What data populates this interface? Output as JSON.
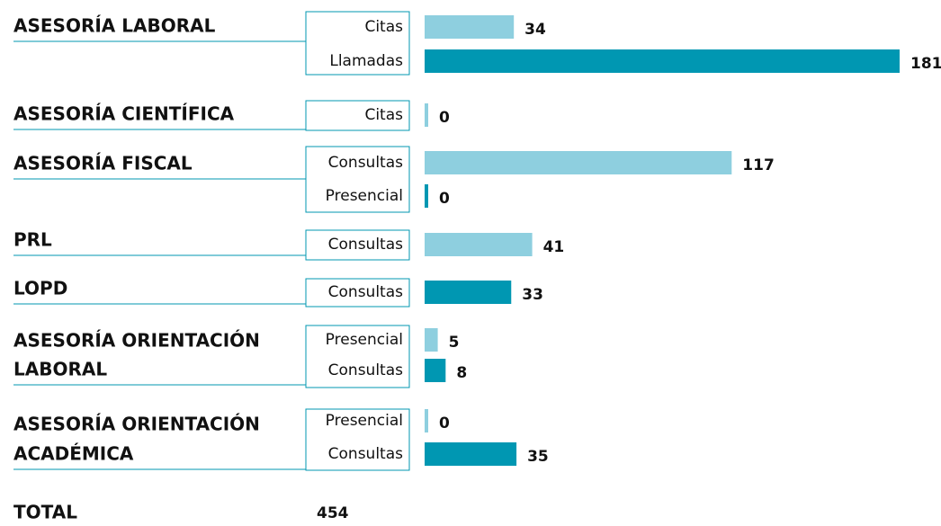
{
  "chart_data": {
    "type": "bar",
    "groups": [
      {
        "label_lines": [
          "ASESORÍA LABORAL"
        ],
        "items": [
          {
            "name": "Citas",
            "value": 34,
            "color": "#8ecfdf"
          },
          {
            "name": "Llamadas",
            "value": 181,
            "color": "#0097b2"
          }
        ]
      },
      {
        "label_lines": [
          "ASESORÍA CIENTÍFICA"
        ],
        "items": [
          {
            "name": "Citas",
            "value": 0,
            "color": "#8ecfdf"
          }
        ]
      },
      {
        "label_lines": [
          "ASESORÍA FISCAL"
        ],
        "items": [
          {
            "name": "Consultas",
            "value": 117,
            "color": "#8ecfdf"
          },
          {
            "name": "Presencial",
            "value": 0,
            "color": "#0097b2"
          }
        ]
      },
      {
        "label_lines": [
          "PRL"
        ],
        "items": [
          {
            "name": "Consultas",
            "value": 41,
            "color": "#8ecfdf"
          }
        ]
      },
      {
        "label_lines": [
          "LOPD"
        ],
        "items": [
          {
            "name": "Consultas",
            "value": 33,
            "color": "#0097b2"
          }
        ]
      },
      {
        "label_lines": [
          "ASESORÍA ORIENTACIÓN",
          "LABORAL"
        ],
        "items": [
          {
            "name": "Presencial",
            "value": 5,
            "color": "#8ecfdf"
          },
          {
            "name": "Consultas",
            "value": 8,
            "color": "#0097b2"
          }
        ]
      },
      {
        "label_lines": [
          "ASESORÍA ORIENTACIÓN",
          "ACADÉMICA"
        ],
        "items": [
          {
            "name": "Presencial",
            "value": 0,
            "color": "#8ecfdf"
          },
          {
            "name": "Consultas",
            "value": 35,
            "color": "#0097b2"
          }
        ]
      }
    ],
    "total": {
      "label": "TOTAL",
      "value": 454
    }
  }
}
